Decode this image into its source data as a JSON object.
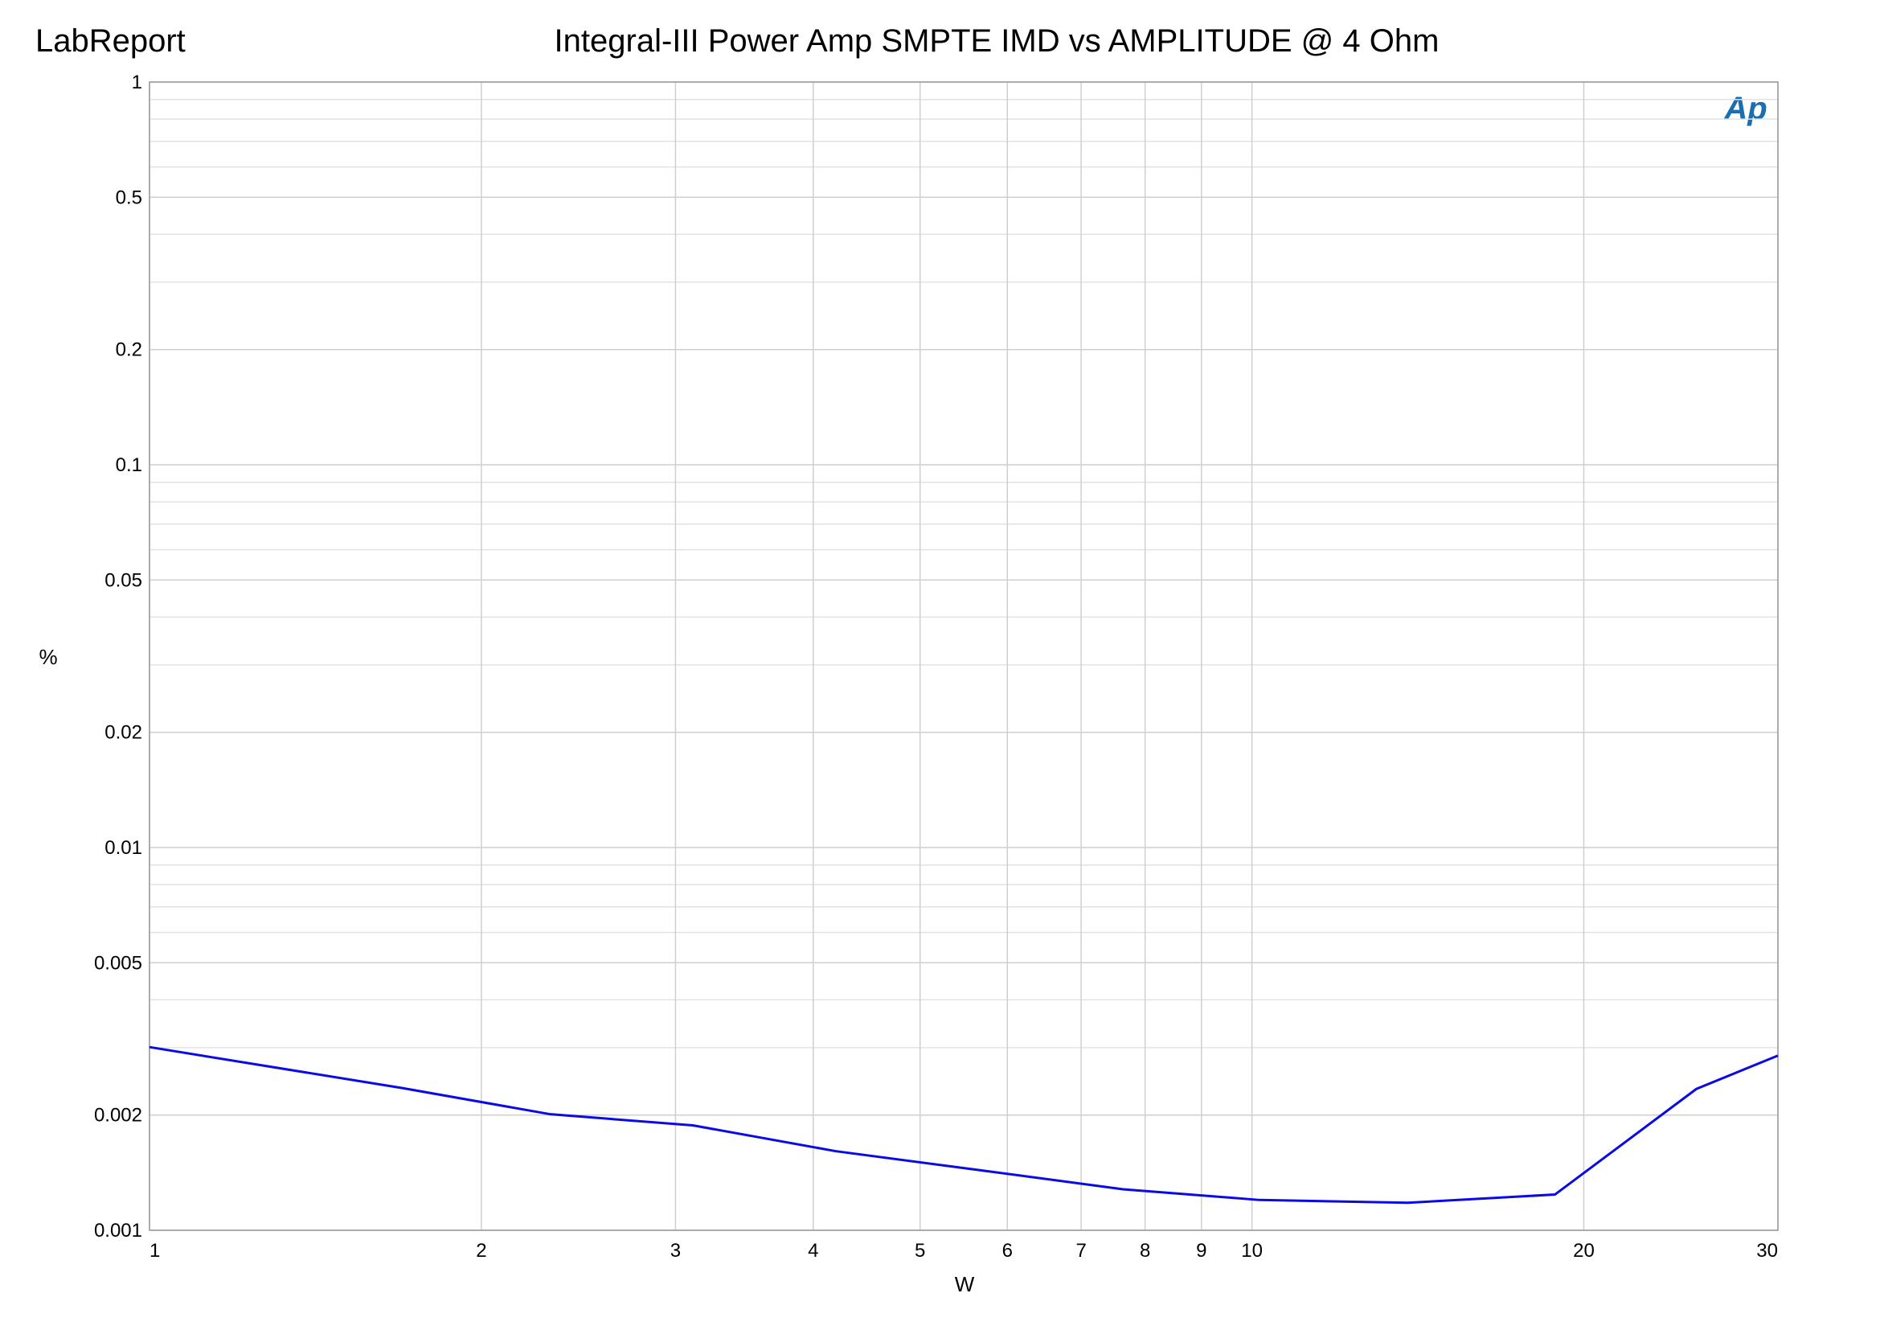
{
  "chart_data": {
    "type": "line",
    "brand": "LabReport",
    "title": "Integral-III Power Amp SMPTE IMD vs AMPLITUDE  @ 4 Ohm",
    "logo": "Ap",
    "xlabel": "W",
    "ylabel": "%",
    "xscale": "log",
    "yscale": "log",
    "grid": true,
    "xlim": [
      1,
      30
    ],
    "ylim": [
      0.001,
      1
    ],
    "xticks": [
      1,
      2,
      3,
      4,
      5,
      6,
      7,
      8,
      9,
      10,
      20,
      30
    ],
    "yticks": [
      0.001,
      0.002,
      0.005,
      0.01,
      0.02,
      0.05,
      0.1,
      0.2,
      0.5,
      1
    ],
    "y_minor_grid": [
      0.003,
      0.004,
      0.006,
      0.007,
      0.008,
      0.009,
      0.03,
      0.04,
      0.06,
      0.07,
      0.08,
      0.09,
      0.3,
      0.4,
      0.6,
      0.7,
      0.8,
      0.9
    ],
    "x": [
      1,
      1.7,
      2.31,
      3.11,
      4.19,
      5.62,
      7.64,
      10.16,
      13.85,
      18.83,
      25.3,
      30
    ],
    "series": [
      {
        "color": "#0a0ae6",
        "values": [
          0.00301,
          0.00235,
          0.00201,
          0.00188,
          0.00161,
          0.00144,
          0.00128,
          0.0012,
          0.00118,
          0.00124,
          0.00234,
          0.00286
        ]
      }
    ]
  }
}
